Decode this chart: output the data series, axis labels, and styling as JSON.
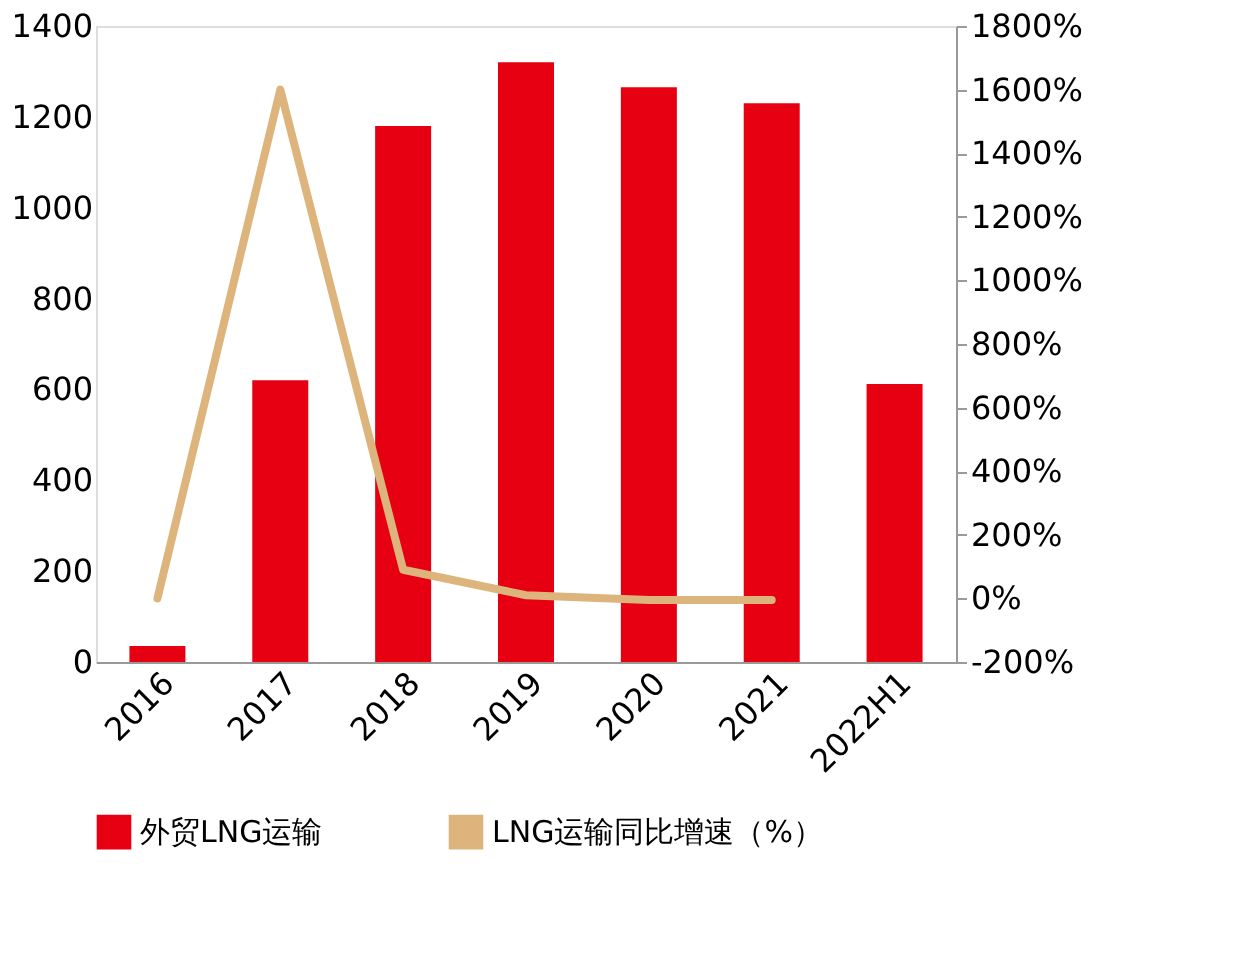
{
  "chart_data": {
    "type": "bar",
    "categories": [
      "2016",
      "2017",
      "2018",
      "2019",
      "2020",
      "2021",
      "2022H1"
    ],
    "series": [
      {
        "name": "外贸LNG运输",
        "color": "#e60012",
        "values": [
          35,
          620,
          1180,
          1320,
          1265,
          1230,
          612
        ]
      },
      {
        "name": "LNG运输同比增速（%）",
        "type": "line",
        "axis": "y2",
        "color": "#dcb47c",
        "values": [
          0,
          1600,
          90,
          10,
          -5,
          -5,
          null
        ]
      }
    ],
    "ylim": [
      0,
      1400
    ],
    "yticks": [
      0,
      200,
      400,
      600,
      800,
      1000,
      1200,
      1400
    ],
    "y2lim": [
      -200,
      1800
    ],
    "y2ticks": [
      {
        "value": -200,
        "label": "-200%"
      },
      {
        "value": 0,
        "label": "0%"
      },
      {
        "value": 200,
        "label": "200%"
      },
      {
        "value": 400,
        "label": "400%"
      },
      {
        "value": 600,
        "label": "600%"
      },
      {
        "value": 800,
        "label": "800%"
      },
      {
        "value": 1000,
        "label": "1000%"
      },
      {
        "value": 1200,
        "label": "1200%"
      },
      {
        "value": 1400,
        "label": "1400%"
      },
      {
        "value": 1600,
        "label": "1600%"
      },
      {
        "value": 1800,
        "label": "1800%"
      }
    ],
    "grid": false,
    "legend": "bottom",
    "marker": "none",
    "line_style": "solid"
  }
}
